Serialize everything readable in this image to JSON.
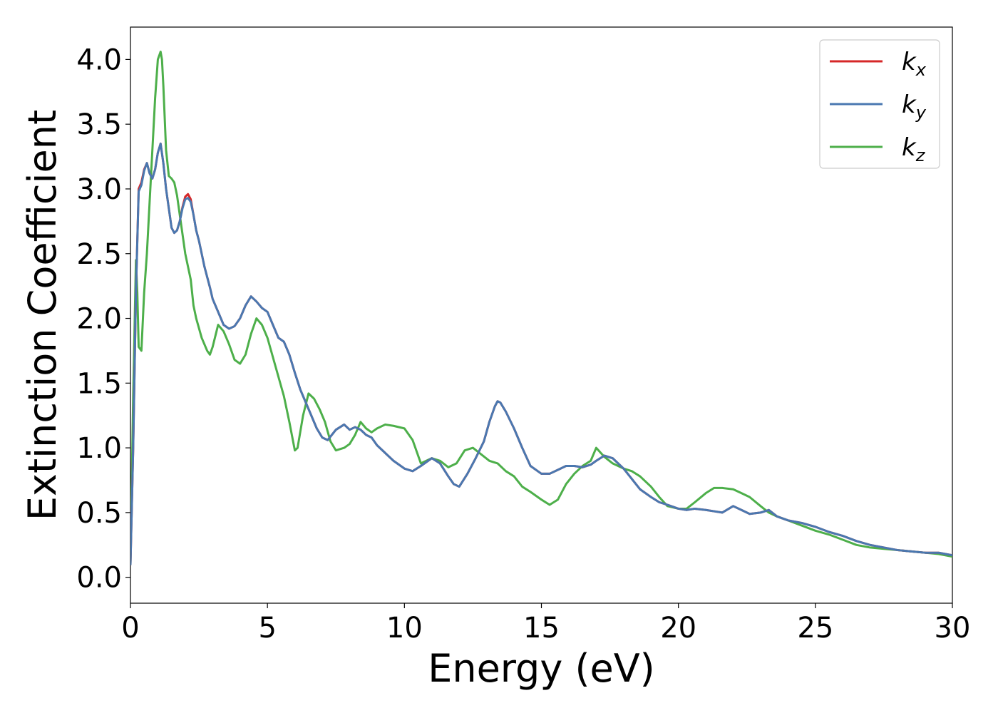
{
  "chart_data": {
    "type": "line",
    "xlabel": "Energy (eV)",
    "ylabel": "Extinction Coefficient",
    "xlim": [
      0,
      30
    ],
    "ylim": [
      -0.2,
      4.25
    ],
    "xticks": [
      0,
      5,
      10,
      15,
      20,
      25,
      30
    ],
    "yticks": [
      0.0,
      0.5,
      1.0,
      1.5,
      2.0,
      2.5,
      3.0,
      3.5,
      4.0
    ],
    "grid": false,
    "legend_position": "top-right",
    "series": [
      {
        "name": "k",
        "subscript": "x",
        "color": "#d62728",
        "x": [
          0.0,
          0.1,
          0.2,
          0.3,
          0.4,
          0.5,
          0.6,
          0.7,
          0.8,
          0.9,
          1.0,
          1.1,
          1.2,
          1.3,
          1.4,
          1.5,
          1.6,
          1.7,
          1.8,
          1.9,
          2.0,
          2.1,
          2.2,
          2.3,
          2.4,
          2.5,
          2.6,
          2.7,
          2.8,
          2.9,
          3.0,
          3.2,
          3.4,
          3.6,
          3.8,
          4.0,
          4.2,
          4.4,
          4.6,
          4.8,
          5.0,
          5.2,
          5.4,
          5.6,
          5.8,
          6.0,
          6.2,
          6.5,
          6.8,
          7.0,
          7.2,
          7.5,
          7.8,
          8.0,
          8.2,
          8.4,
          8.6,
          8.8,
          9.0,
          9.3,
          9.6,
          10.0,
          10.3,
          10.6,
          11.0,
          11.3,
          11.6,
          11.8,
          12.0,
          12.3,
          12.6,
          12.9,
          13.1,
          13.3,
          13.4,
          13.5,
          13.7,
          14.0,
          14.3,
          14.6,
          15.0,
          15.3,
          15.6,
          15.9,
          16.2,
          16.5,
          16.8,
          17.0,
          17.3,
          17.6,
          18.0,
          18.3,
          18.6,
          19.0,
          19.3,
          19.6,
          20.0,
          20.3,
          20.6,
          21.0,
          21.3,
          21.6,
          22.0,
          22.3,
          22.6,
          23.0,
          23.3,
          23.6,
          24.0,
          24.5,
          25.0,
          25.5,
          26.0,
          26.5,
          27.0,
          27.5,
          28.0,
          28.5,
          29.0,
          29.5,
          30.0
        ],
        "y": [
          0.1,
          1.0,
          2.2,
          3.0,
          3.05,
          3.15,
          3.2,
          3.12,
          3.08,
          3.15,
          3.28,
          3.35,
          3.2,
          3.0,
          2.85,
          2.7,
          2.66,
          2.68,
          2.75,
          2.86,
          2.94,
          2.96,
          2.92,
          2.8,
          2.68,
          2.6,
          2.5,
          2.4,
          2.32,
          2.24,
          2.15,
          2.05,
          1.95,
          1.92,
          1.94,
          2.0,
          2.1,
          2.17,
          2.13,
          2.08,
          2.05,
          1.95,
          1.85,
          1.82,
          1.72,
          1.58,
          1.45,
          1.3,
          1.15,
          1.08,
          1.06,
          1.14,
          1.18,
          1.14,
          1.16,
          1.14,
          1.1,
          1.08,
          1.02,
          0.96,
          0.9,
          0.84,
          0.82,
          0.86,
          0.92,
          0.88,
          0.78,
          0.72,
          0.7,
          0.8,
          0.92,
          1.05,
          1.2,
          1.32,
          1.36,
          1.35,
          1.28,
          1.15,
          1.0,
          0.86,
          0.8,
          0.8,
          0.83,
          0.86,
          0.86,
          0.85,
          0.87,
          0.9,
          0.94,
          0.92,
          0.84,
          0.76,
          0.68,
          0.62,
          0.58,
          0.56,
          0.53,
          0.52,
          0.53,
          0.52,
          0.51,
          0.5,
          0.55,
          0.52,
          0.49,
          0.5,
          0.52,
          0.47,
          0.44,
          0.42,
          0.39,
          0.35,
          0.32,
          0.28,
          0.25,
          0.23,
          0.21,
          0.2,
          0.19,
          0.19,
          0.17
        ]
      },
      {
        "name": "k",
        "subscript": "y",
        "color": "#4a78b0",
        "x": [
          0.0,
          0.1,
          0.2,
          0.3,
          0.4,
          0.5,
          0.6,
          0.7,
          0.8,
          0.9,
          1.0,
          1.1,
          1.2,
          1.3,
          1.4,
          1.5,
          1.6,
          1.7,
          1.8,
          1.9,
          2.0,
          2.1,
          2.2,
          2.3,
          2.4,
          2.5,
          2.6,
          2.7,
          2.8,
          2.9,
          3.0,
          3.2,
          3.4,
          3.6,
          3.8,
          4.0,
          4.2,
          4.4,
          4.6,
          4.8,
          5.0,
          5.2,
          5.4,
          5.6,
          5.8,
          6.0,
          6.2,
          6.5,
          6.8,
          7.0,
          7.2,
          7.5,
          7.8,
          8.0,
          8.2,
          8.4,
          8.6,
          8.8,
          9.0,
          9.3,
          9.6,
          10.0,
          10.3,
          10.6,
          11.0,
          11.3,
          11.6,
          11.8,
          12.0,
          12.3,
          12.6,
          12.9,
          13.1,
          13.3,
          13.4,
          13.5,
          13.7,
          14.0,
          14.3,
          14.6,
          15.0,
          15.3,
          15.6,
          15.9,
          16.2,
          16.5,
          16.8,
          17.0,
          17.3,
          17.6,
          18.0,
          18.3,
          18.6,
          19.0,
          19.3,
          19.6,
          20.0,
          20.3,
          20.6,
          21.0,
          21.3,
          21.6,
          22.0,
          22.3,
          22.6,
          23.0,
          23.3,
          23.6,
          24.0,
          24.5,
          25.0,
          25.5,
          26.0,
          26.5,
          27.0,
          27.5,
          28.0,
          28.5,
          29.0,
          29.5,
          30.0
        ],
        "y": [
          0.1,
          1.0,
          2.2,
          2.98,
          3.03,
          3.14,
          3.2,
          3.12,
          3.08,
          3.15,
          3.28,
          3.35,
          3.2,
          3.0,
          2.85,
          2.7,
          2.66,
          2.68,
          2.75,
          2.85,
          2.92,
          2.93,
          2.9,
          2.8,
          2.68,
          2.6,
          2.5,
          2.4,
          2.32,
          2.24,
          2.15,
          2.05,
          1.95,
          1.92,
          1.94,
          2.0,
          2.1,
          2.17,
          2.13,
          2.08,
          2.05,
          1.95,
          1.85,
          1.82,
          1.72,
          1.58,
          1.45,
          1.3,
          1.15,
          1.08,
          1.06,
          1.14,
          1.18,
          1.14,
          1.16,
          1.14,
          1.1,
          1.08,
          1.02,
          0.96,
          0.9,
          0.84,
          0.82,
          0.86,
          0.92,
          0.88,
          0.78,
          0.72,
          0.7,
          0.8,
          0.92,
          1.05,
          1.2,
          1.32,
          1.36,
          1.35,
          1.28,
          1.15,
          1.0,
          0.86,
          0.8,
          0.8,
          0.83,
          0.86,
          0.86,
          0.85,
          0.87,
          0.9,
          0.94,
          0.92,
          0.84,
          0.76,
          0.68,
          0.62,
          0.58,
          0.56,
          0.53,
          0.52,
          0.53,
          0.52,
          0.51,
          0.5,
          0.55,
          0.52,
          0.49,
          0.5,
          0.52,
          0.47,
          0.44,
          0.42,
          0.39,
          0.35,
          0.32,
          0.28,
          0.25,
          0.23,
          0.21,
          0.2,
          0.19,
          0.19,
          0.17
        ]
      },
      {
        "name": "k",
        "subscript": "z",
        "color": "#4daf4a",
        "x": [
          0.0,
          0.1,
          0.2,
          0.25,
          0.3,
          0.4,
          0.5,
          0.6,
          0.7,
          0.8,
          0.9,
          1.0,
          1.1,
          1.15,
          1.2,
          1.3,
          1.4,
          1.5,
          1.6,
          1.7,
          1.8,
          1.9,
          2.0,
          2.1,
          2.2,
          2.3,
          2.4,
          2.6,
          2.8,
          2.9,
          3.0,
          3.2,
          3.4,
          3.6,
          3.8,
          4.0,
          4.2,
          4.4,
          4.6,
          4.8,
          5.0,
          5.2,
          5.4,
          5.6,
          5.8,
          6.0,
          6.1,
          6.3,
          6.5,
          6.7,
          6.9,
          7.1,
          7.3,
          7.5,
          7.8,
          8.0,
          8.2,
          8.4,
          8.6,
          8.8,
          9.0,
          9.3,
          9.6,
          10.0,
          10.3,
          10.6,
          11.0,
          11.3,
          11.6,
          11.9,
          12.2,
          12.5,
          12.8,
          13.1,
          13.4,
          13.7,
          14.0,
          14.3,
          14.6,
          15.0,
          15.3,
          15.6,
          15.9,
          16.2,
          16.5,
          16.8,
          17.0,
          17.3,
          17.6,
          18.0,
          18.3,
          18.6,
          19.0,
          19.3,
          19.6,
          20.0,
          20.3,
          20.6,
          21.0,
          21.3,
          21.6,
          22.0,
          22.3,
          22.6,
          23.0,
          23.3,
          23.6,
          24.0,
          24.5,
          25.0,
          25.5,
          26.0,
          26.5,
          27.0,
          27.5,
          28.0,
          28.5,
          29.0,
          29.5,
          30.0
        ],
        "y": [
          0.1,
          1.4,
          2.45,
          2.2,
          1.78,
          1.75,
          2.2,
          2.5,
          2.9,
          3.3,
          3.7,
          4.0,
          4.06,
          4.0,
          3.8,
          3.3,
          3.1,
          3.08,
          3.05,
          2.95,
          2.8,
          2.65,
          2.5,
          2.4,
          2.3,
          2.1,
          2.0,
          1.85,
          1.75,
          1.72,
          1.78,
          1.95,
          1.9,
          1.8,
          1.68,
          1.65,
          1.72,
          1.88,
          2.0,
          1.95,
          1.85,
          1.7,
          1.55,
          1.4,
          1.2,
          0.98,
          1.0,
          1.25,
          1.42,
          1.38,
          1.3,
          1.2,
          1.05,
          0.98,
          1.0,
          1.03,
          1.1,
          1.2,
          1.15,
          1.12,
          1.15,
          1.18,
          1.17,
          1.15,
          1.06,
          0.88,
          0.92,
          0.9,
          0.85,
          0.88,
          0.98,
          1.0,
          0.95,
          0.9,
          0.88,
          0.82,
          0.78,
          0.7,
          0.66,
          0.6,
          0.56,
          0.6,
          0.72,
          0.8,
          0.86,
          0.9,
          1.0,
          0.93,
          0.88,
          0.84,
          0.82,
          0.78,
          0.7,
          0.62,
          0.55,
          0.53,
          0.53,
          0.58,
          0.65,
          0.69,
          0.69,
          0.68,
          0.65,
          0.62,
          0.55,
          0.5,
          0.47,
          0.44,
          0.4,
          0.36,
          0.33,
          0.29,
          0.25,
          0.23,
          0.22,
          0.21,
          0.2,
          0.19,
          0.18,
          0.16
        ]
      }
    ]
  }
}
